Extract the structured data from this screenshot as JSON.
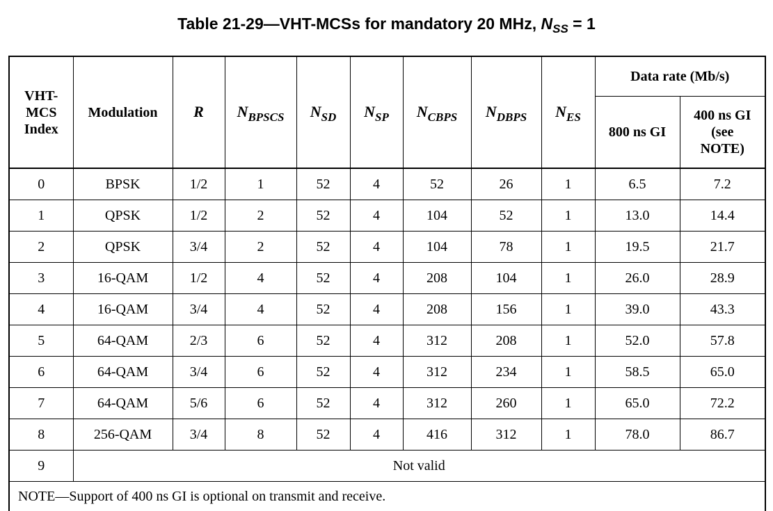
{
  "caption": {
    "prefix": "Table 21-29—VHT-MCSs for mandatory 20 MHz, ",
    "symbol": "N",
    "symbol_sub": "SS",
    "suffix": " = 1"
  },
  "headers": {
    "index_l1": "VHT-",
    "index_l2": "MCS",
    "index_l3": "Index",
    "modulation": "Modulation",
    "rate": "R",
    "nbpscs": {
      "sym": "N",
      "sub": "BPSCS"
    },
    "nsd": {
      "sym": "N",
      "sub": "SD"
    },
    "nsp": {
      "sym": "N",
      "sub": "SP"
    },
    "ncbps": {
      "sym": "N",
      "sub": "CBPS"
    },
    "ndbps": {
      "sym": "N",
      "sub": "DBPS"
    },
    "nes": {
      "sym": "N",
      "sub": "ES"
    },
    "data_rate": "Data rate (Mb/s)",
    "gi800": "800 ns GI",
    "gi400_l1": "400 ns GI",
    "gi400_l2": "(see",
    "gi400_l3": "NOTE)"
  },
  "rows": [
    {
      "index": "0",
      "modulation": "BPSK",
      "rate": "1/2",
      "nbpscs": "1",
      "nsd": "52",
      "nsp": "4",
      "ncbps": "52",
      "ndbps": "26",
      "nes": "1",
      "gi800": "6.5",
      "gi400": "7.2"
    },
    {
      "index": "1",
      "modulation": "QPSK",
      "rate": "1/2",
      "nbpscs": "2",
      "nsd": "52",
      "nsp": "4",
      "ncbps": "104",
      "ndbps": "52",
      "nes": "1",
      "gi800": "13.0",
      "gi400": "14.4"
    },
    {
      "index": "2",
      "modulation": "QPSK",
      "rate": "3/4",
      "nbpscs": "2",
      "nsd": "52",
      "nsp": "4",
      "ncbps": "104",
      "ndbps": "78",
      "nes": "1",
      "gi800": "19.5",
      "gi400": "21.7"
    },
    {
      "index": "3",
      "modulation": "16-QAM",
      "rate": "1/2",
      "nbpscs": "4",
      "nsd": "52",
      "nsp": "4",
      "ncbps": "208",
      "ndbps": "104",
      "nes": "1",
      "gi800": "26.0",
      "gi400": "28.9"
    },
    {
      "index": "4",
      "modulation": "16-QAM",
      "rate": "3/4",
      "nbpscs": "4",
      "nsd": "52",
      "nsp": "4",
      "ncbps": "208",
      "ndbps": "156",
      "nes": "1",
      "gi800": "39.0",
      "gi400": "43.3"
    },
    {
      "index": "5",
      "modulation": "64-QAM",
      "rate": "2/3",
      "nbpscs": "6",
      "nsd": "52",
      "nsp": "4",
      "ncbps": "312",
      "ndbps": "208",
      "nes": "1",
      "gi800": "52.0",
      "gi400": "57.8"
    },
    {
      "index": "6",
      "modulation": "64-QAM",
      "rate": "3/4",
      "nbpscs": "6",
      "nsd": "52",
      "nsp": "4",
      "ncbps": "312",
      "ndbps": "234",
      "nes": "1",
      "gi800": "58.5",
      "gi400": "65.0"
    },
    {
      "index": "7",
      "modulation": "64-QAM",
      "rate": "5/6",
      "nbpscs": "6",
      "nsd": "52",
      "nsp": "4",
      "ncbps": "312",
      "ndbps": "260",
      "nes": "1",
      "gi800": "65.0",
      "gi400": "72.2"
    },
    {
      "index": "8",
      "modulation": "256-QAM",
      "rate": "3/4",
      "nbpscs": "8",
      "nsd": "52",
      "nsp": "4",
      "ncbps": "416",
      "ndbps": "312",
      "nes": "1",
      "gi800": "78.0",
      "gi400": "86.7"
    }
  ],
  "invalid_row": {
    "index": "9",
    "text": "Not valid"
  },
  "note": "NOTE—Support of 400 ns GI is optional on transmit and receive."
}
